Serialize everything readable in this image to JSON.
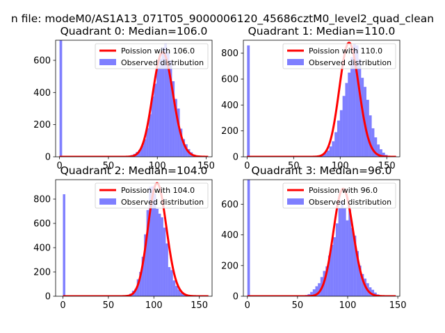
{
  "figure": {
    "suptitle": "n file: modeM0/AS1A13_071T05_9000006120_45686cztM0_level2_quad_clean"
  },
  "chart_data": [
    {
      "type": "bar",
      "title": "Quadrant 0: Median=106.0",
      "median": 106.0,
      "xlim": [
        -4,
        156
      ],
      "ylim": [
        0,
        725
      ],
      "xticks": [
        0,
        50,
        100,
        150
      ],
      "yticks": [
        0,
        200,
        400,
        600
      ],
      "spike": {
        "x": 0,
        "value": 725
      },
      "fit_peak": 650,
      "legend": {
        "position": "top-right",
        "fit": "Poission with 106.0",
        "observed": "Observed distribution"
      },
      "bins": {
        "start": 70,
        "width": 2.65,
        "values": [
          6,
          11,
          18,
          30,
          43,
          70,
          110,
          178,
          265,
          375,
          455,
          555,
          610,
          680,
          705,
          650,
          598,
          470,
          360,
          300,
          175,
          110,
          78,
          48,
          28,
          14,
          7
        ]
      }
    },
    {
      "type": "bar",
      "title": "Quadrant 1: Median=110.0",
      "median": 110.0,
      "xlim": [
        -4,
        164
      ],
      "ylim": [
        0,
        900
      ],
      "xticks": [
        0,
        50,
        100,
        150
      ],
      "yticks": [
        0,
        200,
        400,
        600,
        800
      ],
      "spike": {
        "x": 0,
        "value": 860
      },
      "fit_peak": 880,
      "legend": {
        "position": "top-right",
        "fit": "Poission with 110.0",
        "observed": "Observed distribution"
      },
      "bins": {
        "start": 74,
        "width": 2.85,
        "values": [
          6,
          12,
          20,
          30,
          48,
          80,
          120,
          190,
          280,
          360,
          470,
          570,
          650,
          770,
          870,
          860,
          755,
          610,
          540,
          440,
          320,
          220,
          150,
          95,
          58,
          32,
          15,
          7
        ]
      }
    },
    {
      "type": "bar",
      "title": "Quadrant 2: Median=104.0",
      "median": 104.0,
      "xlim": [
        -8,
        164
      ],
      "ylim": [
        0,
        960
      ],
      "xticks": [
        0,
        50,
        100,
        150
      ],
      "yticks": [
        0,
        200,
        400,
        600,
        800
      ],
      "spike": {
        "x": 0,
        "value": 840
      },
      "fit_peak": 930,
      "legend": {
        "position": "top-right",
        "fit": "Poission with 104.0",
        "observed": "Observed distribution"
      },
      "bins": {
        "start": 68,
        "width": 2.65,
        "values": [
          5,
          12,
          22,
          45,
          60,
          140,
          200,
          325,
          510,
          710,
          900,
          905,
          845,
          720,
          680,
          650,
          565,
          435,
          240,
          215,
          130,
          85,
          55,
          30,
          15,
          7
        ]
      }
    },
    {
      "type": "bar",
      "title": "Quadrant 3: Median=96.0",
      "median": 96.0,
      "xlim": [
        -4,
        152
      ],
      "ylim": [
        0,
        760
      ],
      "xticks": [
        0,
        50,
        100,
        150
      ],
      "yticks": [
        0,
        200,
        400,
        600
      ],
      "spike": {
        "x": 0,
        "value": 760
      },
      "fit_peak": 700,
      "legend": {
        "position": "top-right",
        "fit": "Poission with 96.0",
        "observed": "Observed distribution"
      },
      "bins": {
        "start": 55,
        "width": 2.55,
        "values": [
          5,
          8,
          14,
          28,
          45,
          65,
          85,
          125,
          165,
          195,
          265,
          335,
          385,
          475,
          575,
          625,
          575,
          495,
          565,
          445,
          395,
          295,
          200,
          145,
          115,
          85,
          58,
          42,
          24,
          12,
          6
        ]
      }
    }
  ]
}
